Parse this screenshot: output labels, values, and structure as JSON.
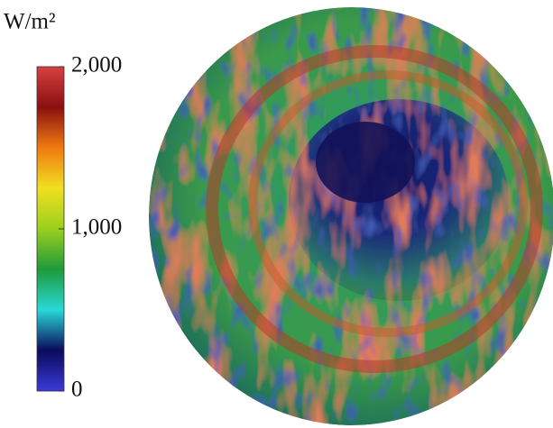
{
  "chart_data": {
    "type": "colorbar",
    "title": "W/m²",
    "ylim": [
      0,
      2000
    ],
    "yticks": [
      0,
      {
        "value": 1000,
        "label": "1,000"
      },
      {
        "value": 2000,
        "label": "2,000"
      }
    ],
    "colors": [
      "#3a3ad8",
      "#0a0a5a",
      "#2ad8d8",
      "#1e9a3a",
      "#9ad01e",
      "#f0e020",
      "#f07a10",
      "#8a1010",
      "#d84040"
    ]
  }
}
